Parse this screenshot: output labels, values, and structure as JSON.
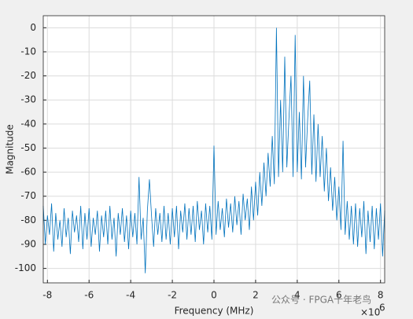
{
  "chart_data": {
    "type": "line",
    "xlabel": "Frequency (MHz)",
    "ylabel": "Magnitude",
    "x_multiplier": {
      "base": "×10",
      "exponent": "6"
    },
    "watermark": "公众号 · FPGA十年老鸟",
    "xlim": [
      -8.2,
      8.2
    ],
    "ylim": [
      -106,
      5
    ],
    "xticks": [
      -8,
      -6,
      -4,
      -2,
      0,
      2,
      4,
      6,
      8
    ],
    "yticks": [
      0,
      -10,
      -20,
      -30,
      -40,
      -50,
      -60,
      -70,
      -80,
      -90,
      -100
    ],
    "grid": true,
    "x": [
      -8.2,
      -8.1,
      -8.0,
      -7.9,
      -7.8,
      -7.7,
      -7.6,
      -7.5,
      -7.4,
      -7.3,
      -7.2,
      -7.1,
      -7.0,
      -6.9,
      -6.8,
      -6.7,
      -6.6,
      -6.5,
      -6.4,
      -6.3,
      -6.2,
      -6.1,
      -6.0,
      -5.9,
      -5.8,
      -5.7,
      -5.6,
      -5.5,
      -5.4,
      -5.3,
      -5.2,
      -5.1,
      -5.0,
      -4.9,
      -4.8,
      -4.7,
      -4.6,
      -4.5,
      -4.4,
      -4.3,
      -4.2,
      -4.1,
      -4.0,
      -3.9,
      -3.8,
      -3.7,
      -3.6,
      -3.5,
      -3.4,
      -3.3,
      -3.2,
      -3.1,
      -3.0,
      -2.9,
      -2.8,
      -2.7,
      -2.6,
      -2.5,
      -2.4,
      -2.3,
      -2.2,
      -2.1,
      -2.0,
      -1.9,
      -1.8,
      -1.7,
      -1.6,
      -1.5,
      -1.4,
      -1.3,
      -1.2,
      -1.1,
      -1.0,
      -0.9,
      -0.8,
      -0.7,
      -0.6,
      -0.5,
      -0.4,
      -0.3,
      -0.2,
      -0.1,
      0.0,
      0.1,
      0.2,
      0.3,
      0.4,
      0.5,
      0.6,
      0.7,
      0.8,
      0.9,
      1.0,
      1.1,
      1.2,
      1.3,
      1.4,
      1.5,
      1.6,
      1.7,
      1.8,
      1.9,
      2.0,
      2.1,
      2.2,
      2.3,
      2.4,
      2.5,
      2.6,
      2.7,
      2.8,
      2.9,
      3.0,
      3.1,
      3.2,
      3.3,
      3.4,
      3.5,
      3.6,
      3.7,
      3.8,
      3.9,
      4.0,
      4.1,
      4.2,
      4.3,
      4.4,
      4.5,
      4.6,
      4.7,
      4.8,
      4.9,
      5.0,
      5.1,
      5.2,
      5.3,
      5.4,
      5.5,
      5.6,
      5.7,
      5.8,
      5.9,
      6.0,
      6.1,
      6.2,
      6.3,
      6.4,
      6.5,
      6.6,
      6.7,
      6.8,
      6.9,
      7.0,
      7.1,
      7.2,
      7.3,
      7.4,
      7.5,
      7.6,
      7.7,
      7.8,
      7.9,
      8.0,
      8.1,
      8.2
    ],
    "series": [
      {
        "color": "#0072bd",
        "values": [
          -74,
          -90,
          -78,
          -86,
          -73,
          -93,
          -77,
          -88,
          -80,
          -91,
          -75,
          -87,
          -79,
          -94,
          -76,
          -85,
          -78,
          -89,
          -74,
          -92,
          -77,
          -88,
          -75,
          -91,
          -79,
          -86,
          -76,
          -93,
          -78,
          -87,
          -76,
          -90,
          -74,
          -88,
          -79,
          -95,
          -77,
          -86,
          -75,
          -89,
          -78,
          -92,
          -76,
          -87,
          -77,
          -90,
          -62,
          -88,
          -79,
          -102,
          -76,
          -63,
          -78,
          -91,
          -75,
          -86,
          -77,
          -89,
          -74,
          -88,
          -77,
          -90,
          -75,
          -87,
          -74,
          -92,
          -76,
          -85,
          -73,
          -88,
          -75,
          -86,
          -74,
          -89,
          -72,
          -84,
          -76,
          -90,
          -73,
          -85,
          -74,
          -88,
          -49,
          -86,
          -72,
          -84,
          -75,
          -87,
          -71,
          -83,
          -73,
          -85,
          -70,
          -82,
          -72,
          -86,
          -69,
          -80,
          -71,
          -84,
          -66,
          -80,
          -64,
          -78,
          -60,
          -74,
          -56,
          -70,
          -52,
          -66,
          -45,
          -65,
          0,
          -62,
          -30,
          -60,
          -12,
          -58,
          -38,
          -20,
          -62,
          -3,
          -60,
          -35,
          -63,
          -20,
          -58,
          -38,
          -22,
          -61,
          -36,
          -64,
          -40,
          -62,
          -45,
          -68,
          -50,
          -72,
          -58,
          -76,
          -62,
          -80,
          -66,
          -84,
          -47,
          -86,
          -72,
          -88,
          -74,
          -90,
          -73,
          -91,
          -75,
          -87,
          -72,
          -94,
          -76,
          -89,
          -74,
          -92,
          -75,
          -88,
          -73,
          -95,
          -76
        ]
      }
    ]
  }
}
